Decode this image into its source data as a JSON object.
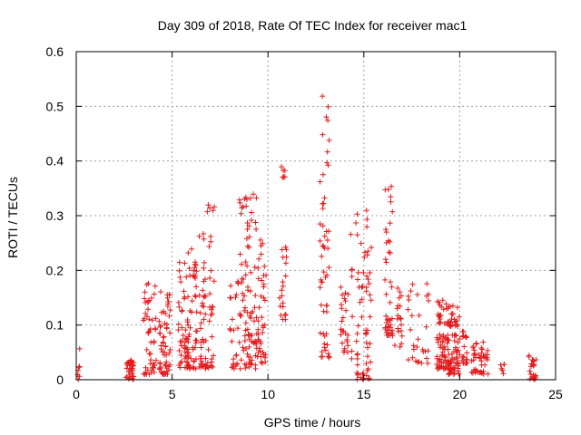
{
  "chart_data": {
    "type": "scatter",
    "title": "Day 309 of 2018, Rate Of TEC Index for receiver mac1",
    "xlabel": "GPS time / hours",
    "ylabel": "ROTI / TECUs",
    "xlim": [
      0,
      25
    ],
    "ylim": [
      0,
      0.6
    ],
    "xticks": [
      "0",
      "5",
      "10",
      "15",
      "20",
      "25"
    ],
    "yticks": [
      "0",
      "0.1",
      "0.2",
      "0.3",
      "0.4",
      "0.5",
      "0.6"
    ],
    "grid": true,
    "marker": "plus",
    "color": "#e41a1c",
    "clusters": [
      {
        "x": [
          0.05,
          0.2
        ],
        "y": [
          0.0,
          0.07
        ],
        "n": 7
      },
      {
        "x": [
          2.6,
          3.0
        ],
        "y": [
          0.0,
          0.04
        ],
        "n": 35
      },
      {
        "x": [
          3.5,
          4.2
        ],
        "y": [
          0.01,
          0.18
        ],
        "n": 50
      },
      {
        "x": [
          4.3,
          4.9
        ],
        "y": [
          0.01,
          0.17
        ],
        "n": 60
      },
      {
        "x": [
          5.3,
          5.8
        ],
        "y": [
          0.02,
          0.22
        ],
        "n": 45
      },
      {
        "x": [
          5.8,
          6.3
        ],
        "y": [
          0.02,
          0.24
        ],
        "n": 55
      },
      {
        "x": [
          6.4,
          6.8
        ],
        "y": [
          0.02,
          0.29
        ],
        "n": 40
      },
      {
        "x": [
          6.8,
          7.2
        ],
        "y": [
          0.02,
          0.35
        ],
        "n": 30
      },
      {
        "x": [
          8.0,
          8.5
        ],
        "y": [
          0.02,
          0.18
        ],
        "n": 25
      },
      {
        "x": [
          8.5,
          9.4
        ],
        "y": [
          0.02,
          0.34
        ],
        "n": 90
      },
      {
        "x": [
          9.4,
          9.9
        ],
        "y": [
          0.03,
          0.26
        ],
        "n": 45
      },
      {
        "x": [
          10.6,
          11.0
        ],
        "y": [
          0.11,
          0.25
        ],
        "n": 20
      },
      {
        "x": [
          10.6,
          10.9
        ],
        "y": [
          0.37,
          0.39
        ],
        "n": 6
      },
      {
        "x": [
          12.7,
          13.2
        ],
        "y": [
          0.04,
          0.53
        ],
        "n": 55
      },
      {
        "x": [
          13.8,
          14.2
        ],
        "y": [
          0.05,
          0.18
        ],
        "n": 25
      },
      {
        "x": [
          14.3,
          15.4
        ],
        "y": [
          0.0,
          0.32
        ],
        "n": 70
      },
      {
        "x": [
          16.1,
          16.5
        ],
        "y": [
          0.08,
          0.38
        ],
        "n": 45
      },
      {
        "x": [
          16.6,
          17.0
        ],
        "y": [
          0.04,
          0.17
        ],
        "n": 20
      },
      {
        "x": [
          17.3,
          18.4
        ],
        "y": [
          0.03,
          0.18
        ],
        "n": 30
      },
      {
        "x": [
          18.8,
          19.4
        ],
        "y": [
          0.02,
          0.15
        ],
        "n": 75
      },
      {
        "x": [
          19.4,
          20.0
        ],
        "y": [
          0.01,
          0.14
        ],
        "n": 80
      },
      {
        "x": [
          20.1,
          20.4
        ],
        "y": [
          0.03,
          0.1
        ],
        "n": 20
      },
      {
        "x": [
          20.6,
          21.5
        ],
        "y": [
          0.01,
          0.07
        ],
        "n": 45
      },
      {
        "x": [
          22.0,
          22.4
        ],
        "y": [
          0.01,
          0.03
        ],
        "n": 6
      },
      {
        "x": [
          23.6,
          24.0
        ],
        "y": [
          0.0,
          0.05
        ],
        "n": 25
      }
    ]
  }
}
